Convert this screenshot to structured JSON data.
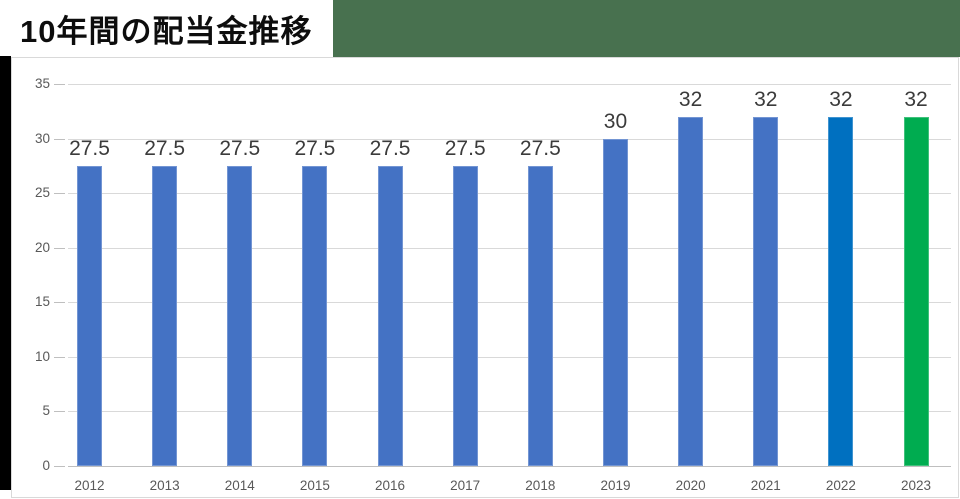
{
  "page": {
    "title": "10年間の配当金推移",
    "colors": {
      "header_accent": "#48714F",
      "side_strip": "#000000",
      "panel_background": "#FFFFFF",
      "panel_border": "#D9D9D9"
    }
  },
  "chart_data": {
    "type": "bar",
    "title": "10年間の配当金推移",
    "categories": [
      "2012",
      "2013",
      "2014",
      "2015",
      "2016",
      "2017",
      "2018",
      "2019",
      "2020",
      "2021",
      "2022",
      "2023"
    ],
    "values": [
      27.5,
      27.5,
      27.5,
      27.5,
      27.5,
      27.5,
      27.5,
      30,
      32,
      32,
      32,
      32
    ],
    "value_labels": [
      "27.5",
      "27.5",
      "27.5",
      "27.5",
      "27.5",
      "27.5",
      "27.5",
      "30",
      "32",
      "32",
      "32",
      "32"
    ],
    "bar_colors": [
      "#4472C4",
      "#4472C4",
      "#4472C4",
      "#4472C4",
      "#4472C4",
      "#4472C4",
      "#4472C4",
      "#4472C4",
      "#4472C4",
      "#4472C4",
      "#0070C0",
      "#00AC50"
    ],
    "xlabel": "",
    "ylabel": "",
    "ylim": [
      0,
      35
    ],
    "yticks": [
      0,
      5,
      10,
      15,
      20,
      25,
      30,
      35
    ],
    "grid": true,
    "legend": false,
    "colors": {
      "gridline": "#D9D9D9",
      "axis_line": "#BFBFBF",
      "axis_label": "#595959",
      "value_label": "#3B3B3B"
    }
  }
}
